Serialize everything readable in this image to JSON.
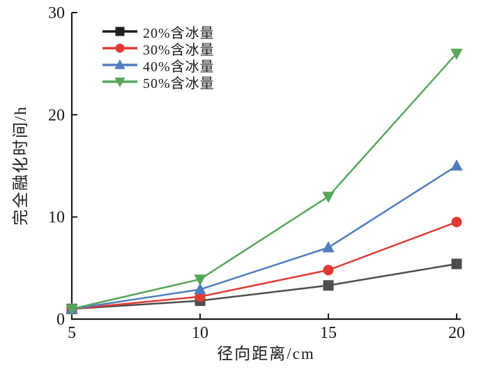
{
  "figure": {
    "background": "#ffffff",
    "axis_color": "#1a1a1a",
    "text_color": "#1a1a1a"
  },
  "chart_data": {
    "type": "line",
    "title": "",
    "xlabel": "径向距离/cm",
    "ylabel": "完全融化时间/h",
    "x": [
      5,
      10,
      15,
      20
    ],
    "xlim": [
      5,
      20
    ],
    "ylim": [
      0,
      30
    ],
    "xticks": [
      5,
      10,
      15,
      20
    ],
    "yticks": [
      0,
      10,
      20,
      30
    ],
    "grid": false,
    "legend_position": "top-left-inside",
    "series": [
      {
        "name": "20%含冰量",
        "color": "#4d4d4d",
        "legend_color": "#1f1f1f",
        "marker": "square",
        "values": [
          1.0,
          1.8,
          3.3,
          5.4
        ]
      },
      {
        "name": "30%含冰量",
        "color": "#df3b32",
        "marker": "circle",
        "values": [
          1.0,
          2.2,
          4.8,
          9.5
        ]
      },
      {
        "name": "40%含冰量",
        "color": "#4f7dbe",
        "marker": "triangle-up",
        "values": [
          1.0,
          2.9,
          7.0,
          15.0
        ]
      },
      {
        "name": "50%含冰量",
        "color": "#57a65a",
        "marker": "triangle-down",
        "values": [
          1.0,
          3.9,
          12.0,
          26.0
        ]
      }
    ]
  }
}
